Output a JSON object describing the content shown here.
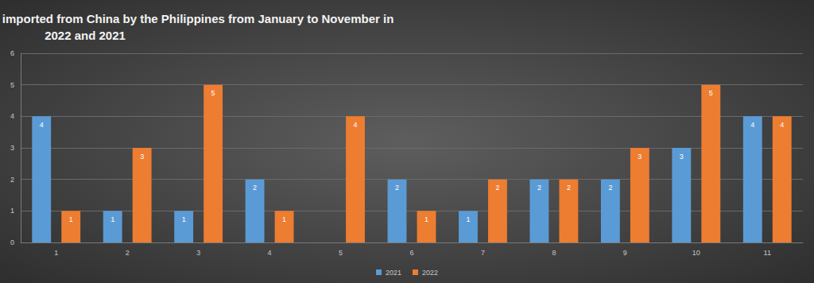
{
  "chart_data": {
    "type": "bar",
    "title": "Comparison of the number of jib cranes imported from China by the Philippines from January to November in 2022 and 2021",
    "categories": [
      "1",
      "2",
      "3",
      "4",
      "5",
      "6",
      "7",
      "8",
      "9",
      "10",
      "11"
    ],
    "series": [
      {
        "name": "2021",
        "color": "#5b9bd5",
        "values": [
          4,
          1,
          1,
          2,
          null,
          2,
          1,
          2,
          2,
          3,
          4
        ]
      },
      {
        "name": "2022",
        "color": "#ed7d31",
        "values": [
          1,
          3,
          5,
          1,
          4,
          1,
          2,
          2,
          3,
          5,
          4
        ]
      }
    ],
    "ylim": [
      0,
      6
    ],
    "yticks": [
      0,
      1,
      2,
      3,
      4,
      5,
      6
    ],
    "grid": true,
    "legend": "bottom",
    "data_labels": true
  }
}
